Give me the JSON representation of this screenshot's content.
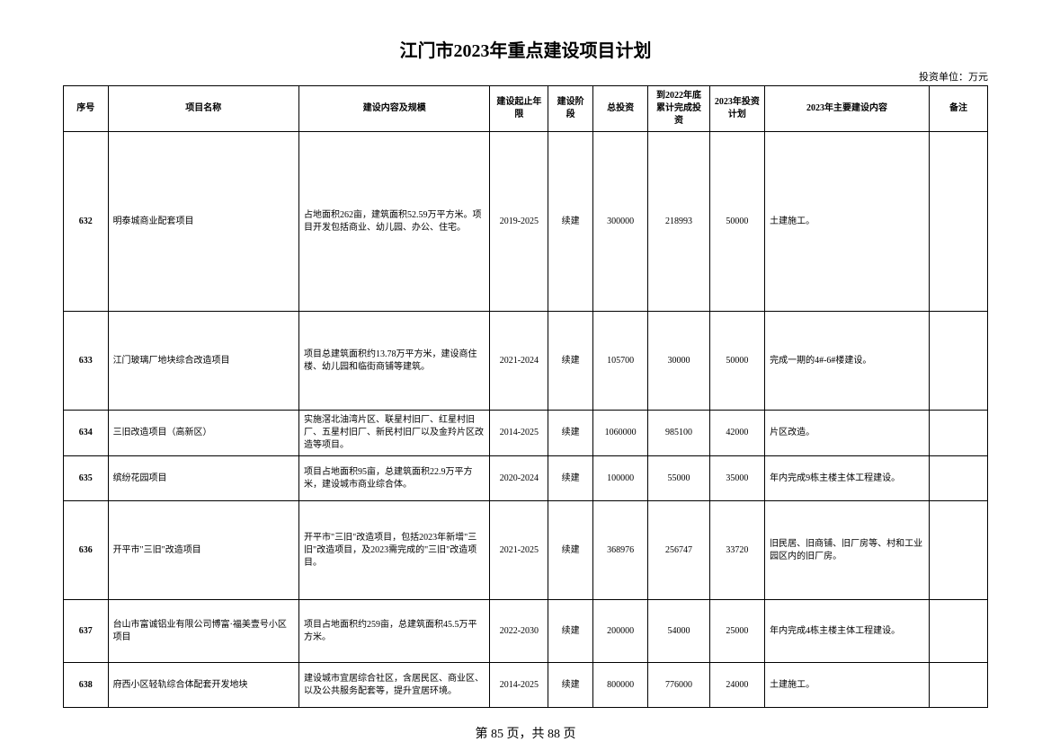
{
  "title": "江门市2023年重点建设项目计划",
  "unit_label": "投资单位：万元",
  "columns": {
    "seq": "序号",
    "name": "项目名称",
    "content": "建设内容及规模",
    "period": "建设起止年限",
    "stage": "建设阶段",
    "invest": "总投资",
    "done": "到2022年底累计完成投资",
    "plan": "2023年投资计划",
    "main": "2023年主要建设内容",
    "remark": "备注"
  },
  "rows": [
    {
      "seq": "632",
      "name": "明泰城商业配套项目",
      "content": "占地面积262亩，建筑面积52.59万平方米。项目开发包括商业、幼儿园、办公、住宅。",
      "period": "2019-2025",
      "stage": "续建",
      "invest": "300000",
      "done": "218993",
      "plan": "50000",
      "main": "土建施工。",
      "remark": "",
      "height": "row-tall"
    },
    {
      "seq": "633",
      "name": "江门玻璃厂地块综合改造项目",
      "content": "项目总建筑面积约13.78万平方米，建设商住楼、幼儿园和临街商铺等建筑。",
      "period": "2021-2024",
      "stage": "续建",
      "invest": "105700",
      "done": "30000",
      "plan": "50000",
      "main": "完成一期的4#-6#楼建设。",
      "remark": "",
      "height": "row-mid"
    },
    {
      "seq": "634",
      "name": "三旧改造项目（高新区）",
      "content": "实施滘北油湾片区、联星村旧厂、红星村旧厂、五星村旧厂、新民村旧厂以及金羚片区改造等项目。",
      "period": "2014-2025",
      "stage": "续建",
      "invest": "1060000",
      "done": "985100",
      "plan": "42000",
      "main": "片区改造。",
      "remark": "",
      "height": "row-short"
    },
    {
      "seq": "635",
      "name": "缤纷花园项目",
      "content": "项目占地面积95亩，总建筑面积22.9万平方米，建设城市商业综合体。",
      "period": "2020-2024",
      "stage": "续建",
      "invest": "100000",
      "done": "55000",
      "plan": "35000",
      "main": "年内完成9栋主楼主体工程建设。",
      "remark": "",
      "height": "row-short"
    },
    {
      "seq": "636",
      "name": "开平市\"三旧\"改造项目",
      "content": "开平市\"三旧\"改造项目，包括2023年新增\"三旧\"改造项目，及2023需完成的\"三旧\"改造项目。",
      "period": "2021-2025",
      "stage": "续建",
      "invest": "368976",
      "done": "256747",
      "plan": "33720",
      "main": "旧民居、旧商铺、旧厂房等、村和工业园区内的旧厂房。",
      "remark": "",
      "height": "row-mid"
    },
    {
      "seq": "637",
      "name": "台山市富诚铝业有限公司博富·福美壹号小区项目",
      "content": "项目占地面积约259亩，总建筑面积45.5万平方米。",
      "period": "2022-2030",
      "stage": "续建",
      "invest": "200000",
      "done": "54000",
      "plan": "25000",
      "main": "年内完成4栋主楼主体工程建设。",
      "remark": "",
      "height": "row-medium"
    },
    {
      "seq": "638",
      "name": "府西小区轻轨综合体配套开发地块",
      "content": "建设城市宜居综合社区，含居民区、商业区、以及公共服务配套等，提升宜居环境。",
      "period": "2014-2025",
      "stage": "续建",
      "invest": "800000",
      "done": "776000",
      "plan": "24000",
      "main": "土建施工。",
      "remark": "",
      "height": "row-short"
    }
  ],
  "footer": "第 85 页，共 88 页"
}
